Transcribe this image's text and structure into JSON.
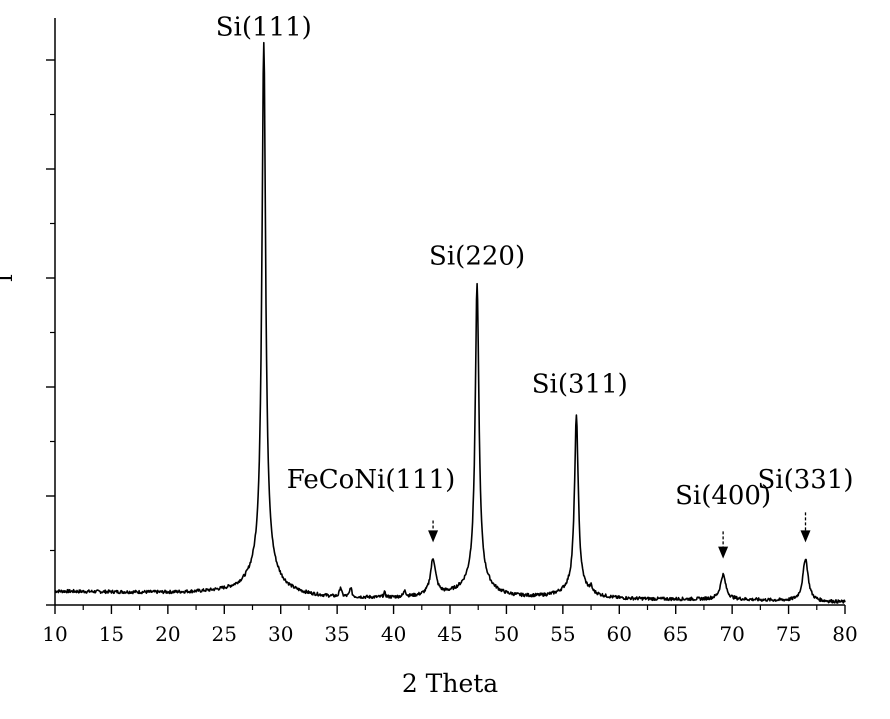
{
  "chart_data": {
    "type": "line",
    "title": "",
    "xlabel": "2 Theta",
    "ylabel": "I",
    "xlim": [
      10,
      80
    ],
    "ylim": [
      0,
      1.0
    ],
    "x_ticks": [
      10,
      15,
      20,
      25,
      30,
      35,
      40,
      45,
      50,
      55,
      60,
      65,
      70,
      75,
      80
    ],
    "y_ticks_major": [
      0,
      0.2,
      0.4,
      0.6,
      0.8,
      1.0
    ],
    "y_tick_labels_shown": false,
    "grid": false,
    "legend": "none",
    "series": [
      {
        "baseline": [
          [
            10,
            0.025
          ],
          [
            20,
            0.022
          ],
          [
            25,
            0.022
          ],
          [
            35,
            0.012
          ],
          [
            40,
            0.012
          ],
          [
            45,
            0.015
          ],
          [
            50,
            0.012
          ],
          [
            55,
            0.012
          ],
          [
            60,
            0.01
          ],
          [
            70,
            0.01
          ],
          [
            80,
            0.005
          ]
        ],
        "peaks": [
          {
            "x": 28.5,
            "y": 0.975,
            "label": "Si(111)"
          },
          {
            "x": 43.5,
            "y": 0.08,
            "label": "FeCoNi(111)"
          },
          {
            "x": 47.4,
            "y": 0.555,
            "label": "Si(220)"
          },
          {
            "x": 56.2,
            "y": 0.325,
            "label": "Si(311)"
          },
          {
            "x": 69.2,
            "y": 0.055,
            "label": "Si(400)"
          },
          {
            "x": 76.5,
            "y": 0.085,
            "label": "Si(331)"
          }
        ],
        "minor_peaks": [
          {
            "x": 35.3,
            "y": 0.03
          },
          {
            "x": 36.2,
            "y": 0.03
          },
          {
            "x": 39.2,
            "y": 0.02
          },
          {
            "x": 41.0,
            "y": 0.025
          },
          {
            "x": 57.5,
            "y": 0.02
          }
        ]
      }
    ],
    "annotations": [
      {
        "text": "Si(111)",
        "x": 28.5,
        "y": 1.045,
        "arrow": false
      },
      {
        "text": "Si(220)",
        "x": 47.4,
        "y": 0.625,
        "arrow": false
      },
      {
        "text": "Si(311)",
        "x": 56.5,
        "y": 0.39,
        "arrow": false
      },
      {
        "text": "FeCoNi(111)",
        "x": 38.0,
        "y": 0.215,
        "arrow": true,
        "arrow_x": 43.5,
        "arrow_top": 0.155,
        "arrow_bottom": 0.115
      },
      {
        "text": "Si(400)",
        "x": 69.2,
        "y": 0.185,
        "arrow": true,
        "arrow_x": 69.2,
        "arrow_top": 0.135,
        "arrow_bottom": 0.085
      },
      {
        "text": "Si(331)",
        "x": 76.5,
        "y": 0.215,
        "arrow": true,
        "arrow_x": 76.5,
        "arrow_top": 0.17,
        "arrow_bottom": 0.115
      }
    ]
  }
}
